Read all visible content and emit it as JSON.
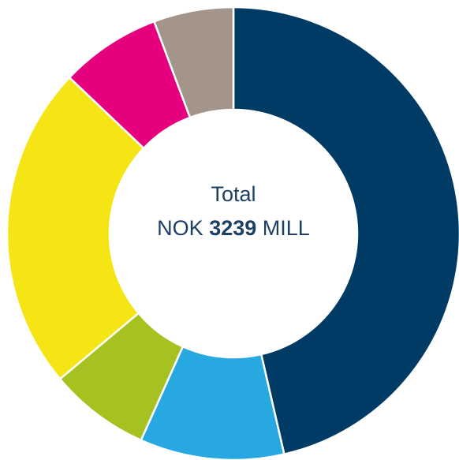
{
  "chart_data": {
    "type": "donut",
    "values": [
      46.4,
      10.3,
      7.2,
      23.2,
      7.2,
      5.7
    ],
    "colors": [
      "#003b66",
      "#27a8e0",
      "#a5c221",
      "#f5e514",
      "#e6007e",
      "#a39589"
    ],
    "center_text": {
      "line1": "Total",
      "prefix": "NOK",
      "amount": "3239",
      "suffix": "MILL"
    }
  }
}
